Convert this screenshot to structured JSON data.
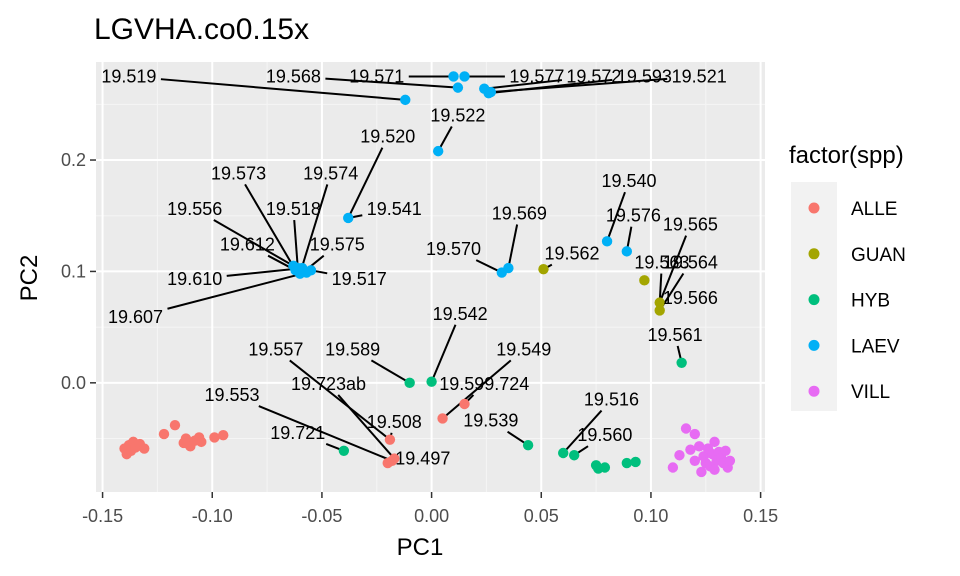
{
  "chart_data": {
    "type": "scatter",
    "title": "LGVHA.co0.15x",
    "xlabel": "PC1",
    "ylabel": "PC2",
    "xlim": [
      -0.153,
      0.152
    ],
    "ylim": [
      -0.098,
      0.288
    ],
    "x_ticks": [
      -0.15,
      -0.1,
      -0.05,
      0.0,
      0.05,
      0.1,
      0.15
    ],
    "x_tick_labels": [
      "-0.15",
      "-0.10",
      "-0.05",
      "0.00",
      "0.05",
      "0.10",
      "0.15"
    ],
    "y_ticks": [
      0.0,
      0.1,
      0.2
    ],
    "y_tick_labels": [
      "0.0",
      "0.1",
      "0.2"
    ],
    "grid": true,
    "panel_background": "#ebebeb",
    "legend": {
      "title": "factor(spp)",
      "placement": "right",
      "entries": [
        {
          "name": "ALLE",
          "color": "#f8766d"
        },
        {
          "name": "GUAN",
          "color": "#a3a500"
        },
        {
          "name": "HYB",
          "color": "#00bf7d"
        },
        {
          "name": "LAEV",
          "color": "#00b0f6"
        },
        {
          "name": "VILL",
          "color": "#e76bf3"
        }
      ]
    },
    "series": [
      {
        "name": "ALLE",
        "points": [
          [
            -0.14,
            -0.059
          ],
          [
            -0.139,
            -0.064
          ],
          [
            -0.138,
            -0.056
          ],
          [
            -0.137,
            -0.061
          ],
          [
            -0.136,
            -0.053
          ],
          [
            -0.135,
            -0.058
          ],
          [
            -0.133,
            -0.055
          ],
          [
            -0.131,
            -0.059
          ],
          [
            -0.122,
            -0.046
          ],
          [
            -0.117,
            -0.038
          ],
          [
            -0.113,
            -0.054
          ],
          [
            -0.112,
            -0.05
          ],
          [
            -0.11,
            -0.057
          ],
          [
            -0.108,
            -0.052
          ],
          [
            -0.106,
            -0.049
          ],
          [
            -0.105,
            -0.053
          ],
          [
            -0.099,
            -0.049
          ],
          [
            -0.095,
            -0.047
          ],
          [
            -0.02,
            -0.072
          ],
          [
            -0.018,
            -0.07
          ],
          [
            -0.019,
            -0.051
          ],
          [
            -0.017,
            -0.068
          ],
          [
            0.005,
            -0.032
          ],
          [
            0.015,
            -0.019
          ]
        ]
      },
      {
        "name": "GUAN",
        "points": [
          [
            0.051,
            0.102
          ],
          [
            0.097,
            0.092
          ],
          [
            0.104,
            0.072
          ],
          [
            0.104,
            0.065
          ]
        ]
      },
      {
        "name": "HYB",
        "points": [
          [
            -0.04,
            -0.061
          ],
          [
            -0.01,
            0.0
          ],
          [
            0.0,
            0.001
          ],
          [
            0.044,
            -0.056
          ],
          [
            0.06,
            -0.063
          ],
          [
            0.065,
            -0.065
          ],
          [
            0.075,
            -0.074
          ],
          [
            0.076,
            -0.077
          ],
          [
            0.079,
            -0.076
          ],
          [
            0.089,
            -0.072
          ],
          [
            0.093,
            -0.071
          ],
          [
            0.114,
            0.018
          ]
        ]
      },
      {
        "name": "LAEV",
        "points": [
          [
            0.01,
            0.275
          ],
          [
            0.015,
            0.275
          ],
          [
            0.012,
            0.265
          ],
          [
            0.024,
            0.264
          ],
          [
            0.026,
            0.26
          ],
          [
            0.027,
            0.261
          ],
          [
            -0.012,
            0.254
          ],
          [
            0.003,
            0.208
          ],
          [
            -0.038,
            0.148
          ],
          [
            0.08,
            0.127
          ],
          [
            0.089,
            0.118
          ],
          [
            0.035,
            0.103
          ],
          [
            0.032,
            0.099
          ],
          [
            -0.063,
            0.105
          ],
          [
            -0.062,
            0.101
          ],
          [
            -0.06,
            0.098
          ],
          [
            -0.059,
            0.103
          ],
          [
            -0.058,
            0.1
          ],
          [
            -0.057,
            0.099
          ],
          [
            -0.055,
            0.101
          ],
          [
            -0.061,
            0.103
          ]
        ]
      },
      {
        "name": "VILL",
        "points": [
          [
            0.116,
            -0.041
          ],
          [
            0.12,
            -0.046
          ],
          [
            0.113,
            -0.065
          ],
          [
            0.118,
            -0.06
          ],
          [
            0.12,
            -0.07
          ],
          [
            0.122,
            -0.057
          ],
          [
            0.124,
            -0.066
          ],
          [
            0.125,
            -0.072
          ],
          [
            0.126,
            -0.059
          ],
          [
            0.127,
            -0.075
          ],
          [
            0.128,
            -0.064
          ],
          [
            0.129,
            -0.053
          ],
          [
            0.13,
            -0.07
          ],
          [
            0.131,
            -0.062
          ],
          [
            0.132,
            -0.067
          ],
          [
            0.133,
            -0.072
          ],
          [
            0.134,
            -0.061
          ],
          [
            0.135,
            -0.076
          ],
          [
            0.136,
            -0.07
          ],
          [
            0.11,
            -0.076
          ],
          [
            0.123,
            -0.08
          ],
          [
            0.129,
            -0.078
          ]
        ]
      }
    ],
    "labels": [
      {
        "text": "19.519",
        "x": -0.012,
        "y": 0.254,
        "label_x": -0.138,
        "label_y": 0.275
      },
      {
        "text": "19.568",
        "x": 0.012,
        "y": 0.265,
        "label_x": -0.063,
        "label_y": 0.275
      },
      {
        "text": "19.571",
        "x": 0.01,
        "y": 0.275,
        "label_x": -0.025,
        "label_y": 0.275
      },
      {
        "text": "19.577",
        "x": 0.015,
        "y": 0.275,
        "label_x": 0.048,
        "label_y": 0.275
      },
      {
        "text": "19.572",
        "x": 0.024,
        "y": 0.264,
        "label_x": 0.074,
        "label_y": 0.275
      },
      {
        "text": "19.593",
        "x": 0.026,
        "y": 0.26,
        "label_x": 0.097,
        "label_y": 0.275
      },
      {
        "text": "19.521",
        "x": 0.027,
        "y": 0.261,
        "label_x": 0.122,
        "label_y": 0.275
      },
      {
        "text": "19.522",
        "x": 0.003,
        "y": 0.208,
        "label_x": 0.012,
        "label_y": 0.24
      },
      {
        "text": "19.520",
        "x": -0.038,
        "y": 0.148,
        "label_x": -0.02,
        "label_y": 0.221
      },
      {
        "text": "19.573",
        "x": -0.062,
        "y": 0.101,
        "label_x": -0.088,
        "label_y": 0.188
      },
      {
        "text": "19.574",
        "x": -0.06,
        "y": 0.098,
        "label_x": -0.046,
        "label_y": 0.188
      },
      {
        "text": "19.556",
        "x": -0.063,
        "y": 0.105,
        "label_x": -0.108,
        "label_y": 0.156
      },
      {
        "text": "19.518",
        "x": -0.061,
        "y": 0.103,
        "label_x": -0.063,
        "label_y": 0.156
      },
      {
        "text": "19.541",
        "x": -0.038,
        "y": 0.148,
        "label_x": -0.017,
        "label_y": 0.156
      },
      {
        "text": "19.612",
        "x": -0.062,
        "y": 0.101,
        "label_x": -0.084,
        "label_y": 0.124
      },
      {
        "text": "19.575",
        "x": -0.058,
        "y": 0.1,
        "label_x": -0.043,
        "label_y": 0.124
      },
      {
        "text": "19.610",
        "x": -0.059,
        "y": 0.103,
        "label_x": -0.108,
        "label_y": 0.093
      },
      {
        "text": "19.517",
        "x": -0.055,
        "y": 0.101,
        "label_x": -0.033,
        "label_y": 0.093
      },
      {
        "text": "19.607",
        "x": -0.057,
        "y": 0.099,
        "label_x": -0.135,
        "label_y": 0.059
      },
      {
        "text": "19.569",
        "x": 0.035,
        "y": 0.103,
        "label_x": 0.04,
        "label_y": 0.152
      },
      {
        "text": "19.570",
        "x": 0.032,
        "y": 0.099,
        "label_x": 0.01,
        "label_y": 0.12
      },
      {
        "text": "19.562",
        "x": 0.051,
        "y": 0.102,
        "label_x": 0.064,
        "label_y": 0.116
      },
      {
        "text": "19.540",
        "x": 0.08,
        "y": 0.127,
        "label_x": 0.09,
        "label_y": 0.181
      },
      {
        "text": "19.576",
        "x": 0.089,
        "y": 0.118,
        "label_x": 0.092,
        "label_y": 0.15
      },
      {
        "text": "19.565",
        "x": 0.104,
        "y": 0.072,
        "label_x": 0.118,
        "label_y": 0.142
      },
      {
        "text": "19.563",
        "x": 0.104,
        "y": 0.072,
        "label_x": 0.105,
        "label_y": 0.108
      },
      {
        "text": "19.564",
        "x": 0.104,
        "y": 0.065,
        "label_x": 0.118,
        "label_y": 0.108
      },
      {
        "text": "19.566",
        "x": 0.104,
        "y": 0.065,
        "label_x": 0.118,
        "label_y": 0.076
      },
      {
        "text": "19.561",
        "x": 0.114,
        "y": 0.018,
        "label_x": 0.111,
        "label_y": 0.043
      },
      {
        "text": "19.542",
        "x": 0.0,
        "y": 0.001,
        "label_x": 0.013,
        "label_y": 0.062
      },
      {
        "text": "19.589",
        "x": -0.01,
        "y": 0.0,
        "label_x": -0.036,
        "label_y": 0.03
      },
      {
        "text": "19.557",
        "x": -0.019,
        "y": -0.051,
        "label_x": -0.071,
        "label_y": 0.03
      },
      {
        "text": "19.549",
        "x": 0.005,
        "y": -0.032,
        "label_x": 0.042,
        "label_y": 0.03
      },
      {
        "text": "19.723ab",
        "x": -0.017,
        "y": -0.068,
        "label_x": -0.047,
        "label_y": -0.001
      },
      {
        "text": "19.599.724",
        "x": 0.015,
        "y": -0.019,
        "label_x": 0.024,
        "label_y": -0.001
      },
      {
        "text": "19.553",
        "x": -0.018,
        "y": -0.07,
        "label_x": -0.091,
        "label_y": -0.011
      },
      {
        "text": "19.516",
        "x": 0.06,
        "y": -0.063,
        "label_x": 0.082,
        "label_y": -0.015
      },
      {
        "text": "19.539",
        "x": 0.044,
        "y": -0.056,
        "label_x": 0.027,
        "label_y": -0.034
      },
      {
        "text": "19.508",
        "x": -0.019,
        "y": -0.051,
        "label_x": -0.017,
        "label_y": -0.035
      },
      {
        "text": "19.721",
        "x": -0.04,
        "y": -0.061,
        "label_x": -0.061,
        "label_y": -0.045
      },
      {
        "text": "19.560",
        "x": 0.065,
        "y": -0.065,
        "label_x": 0.079,
        "label_y": -0.047
      },
      {
        "text": "19.497",
        "x": -0.018,
        "y": -0.072,
        "label_x": -0.004,
        "label_y": -0.068
      }
    ]
  }
}
